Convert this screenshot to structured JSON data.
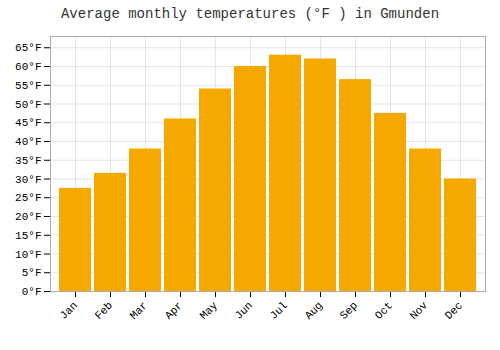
{
  "chart_data": {
    "type": "bar",
    "title": "Average monthly temperatures (°F ) in Gmunden",
    "categories": [
      "Jan",
      "Feb",
      "Mar",
      "Apr",
      "May",
      "Jun",
      "Jul",
      "Aug",
      "Sep",
      "Oct",
      "Nov",
      "Dec"
    ],
    "values": [
      27.5,
      31.5,
      38.0,
      46.0,
      54.0,
      60.0,
      63.0,
      62.0,
      56.5,
      47.5,
      38.0,
      30.0
    ],
    "color": "#F5A800",
    "ylim": [
      0,
      68
    ],
    "yticks": [
      {
        "value": 0,
        "label": "0°F"
      },
      {
        "value": 5,
        "label": "5°F"
      },
      {
        "value": 10,
        "label": "10°F"
      },
      {
        "value": 15,
        "label": "15°F"
      },
      {
        "value": 20,
        "label": "20°F"
      },
      {
        "value": 25,
        "label": "25°F"
      },
      {
        "value": 30,
        "label": "30°F"
      },
      {
        "value": 35,
        "label": "35°F"
      },
      {
        "value": 40,
        "label": "40°F"
      },
      {
        "value": 45,
        "label": "45°F"
      },
      {
        "value": 50,
        "label": "50°F"
      },
      {
        "value": 55,
        "label": "55°F"
      },
      {
        "value": 60,
        "label": "60°F"
      },
      {
        "value": 65,
        "label": "65°F"
      }
    ],
    "grid": true
  }
}
